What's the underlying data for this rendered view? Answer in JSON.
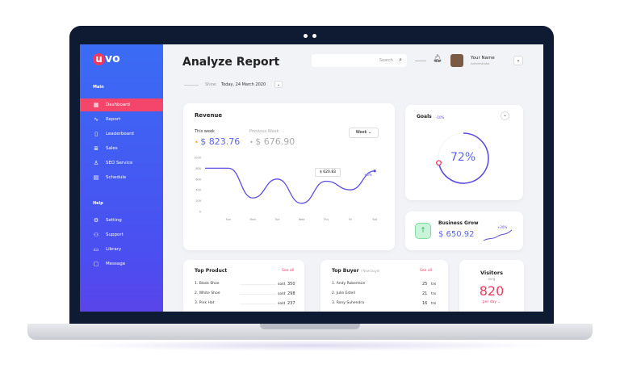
{
  "app": {
    "logo": "uvo",
    "title": "Analyze Report"
  },
  "header": {
    "show_label": "Show:",
    "date": "Today, 24 March 2020",
    "search_placeholder": "Search",
    "user_name": "Your Name",
    "user_role": "Administrator"
  },
  "sidebar": {
    "main_label": "Main",
    "help_label": "Help",
    "items": [
      {
        "label": "Dashboard",
        "icon": "grid-icon",
        "active": true
      },
      {
        "label": "Report",
        "icon": "activity-icon"
      },
      {
        "label": "Leaderboard",
        "icon": "clipboard-icon"
      },
      {
        "label": "Sales",
        "icon": "database-icon"
      },
      {
        "label": "SEO Service",
        "icon": "user-icon"
      },
      {
        "label": "Schedule",
        "icon": "calendar-icon"
      }
    ],
    "help_items": [
      {
        "label": "Setting",
        "icon": "gear-icon"
      },
      {
        "label": "Support",
        "icon": "users-icon"
      },
      {
        "label": "Library",
        "icon": "folder-icon"
      },
      {
        "label": "Message",
        "icon": "message-icon"
      }
    ]
  },
  "revenue": {
    "title": "Revenue",
    "this_week_label": "This week",
    "this_week": "$ 823.76",
    "prev_week_label": "Previous Week",
    "prev_week": "$ 676.90",
    "period": "Week",
    "tooltip": "$ 620.83",
    "change": "+5%"
  },
  "chart_data": {
    "type": "line",
    "categories": [
      "Sun",
      "Mon",
      "Tue",
      "Wed",
      "Thu",
      "Fri",
      "Sat"
    ],
    "yticks": [
      "1000",
      "800",
      "600",
      "400",
      "200",
      "0"
    ],
    "ylim": [
      0,
      1000
    ],
    "series": [
      {
        "values": [
          800,
          250,
          600,
          150,
          560,
          400,
          750
        ],
        "color": "#5b4fe0"
      }
    ]
  },
  "goals": {
    "title": "Goals",
    "change": "-10%",
    "value": "72%",
    "fraction": 0.72
  },
  "business": {
    "title": "Business Grow",
    "value": "$ 650.92",
    "change": "+20%"
  },
  "top_product": {
    "title": "Top Product",
    "see_all": "See all",
    "rows": [
      {
        "name": "1. Black Shoe",
        "unit": "sold",
        "value": "350"
      },
      {
        "name": "2. White Shoe",
        "unit": "sold",
        "value": "298"
      },
      {
        "name": "3. Pink Hat",
        "unit": "sold",
        "value": "237"
      }
    ]
  },
  "top_buyer": {
    "title": "Top Buyer",
    "subtitle": "/ New buyer",
    "see_all": "See all",
    "rows": [
      {
        "name": "1. Andy Robertson",
        "value": "25",
        "unit": "trx"
      },
      {
        "name": "2. Julie Estell",
        "value": "21",
        "unit": "trx"
      },
      {
        "name": "3. Rony Suhendra",
        "value": "16",
        "unit": "trx"
      }
    ]
  },
  "visitors": {
    "title": "Visitors",
    "sub": "avrg",
    "value": "820",
    "period": "per day"
  },
  "colors": {
    "accent": "#5b4fe0",
    "pink": "#f0385f",
    "sidebar": "#3a6cf5"
  }
}
